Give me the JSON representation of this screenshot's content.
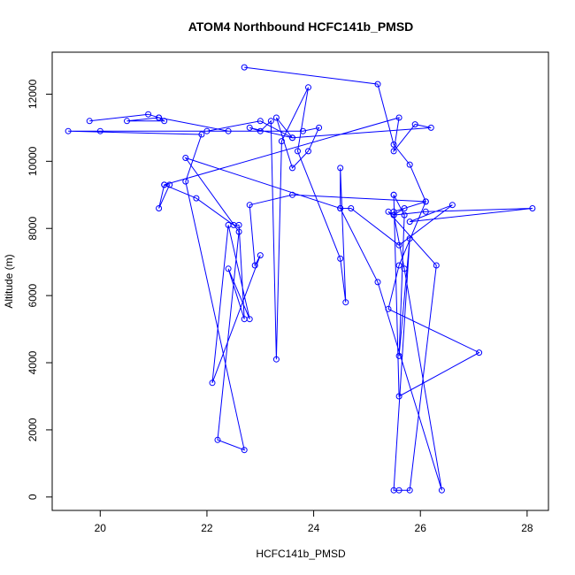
{
  "chart_data": {
    "type": "line",
    "title": "ATOM4 Northbound HCFC141b_PMSD",
    "xlabel": "HCFC141b_PMSD",
    "ylabel": "Altitude (m)",
    "xlim": [
      19.1,
      28.4
    ],
    "ylim": [
      -400,
      13250
    ],
    "x_ticks": [
      20,
      22,
      24,
      26,
      28
    ],
    "x_tick_labels": [
      "20",
      "22",
      "24",
      "26",
      "28"
    ],
    "y_ticks": [
      0,
      2000,
      4000,
      6000,
      8000,
      10000,
      12000
    ],
    "y_tick_labels": [
      "0",
      "2000",
      "4000",
      "6000",
      "8000",
      "10000",
      "12000"
    ],
    "grid": false,
    "legend": "none",
    "series_color": "#0000ff",
    "x": [
      22.7,
      25.2,
      25.5,
      25.8,
      26.1,
      25.6,
      25.4,
      27.1,
      25.6,
      25.5,
      25.5,
      25.7,
      25.6,
      25.8,
      25.5,
      25.6,
      25.8,
      26.3,
      25.4,
      25.5,
      25.7,
      26.4,
      25.2,
      24.5,
      24.5,
      24.6,
      24.5,
      23.7,
      23.9,
      23.4,
      23.3,
      23.2,
      23.0,
      22.8,
      23.6,
      23.3,
      23.6,
      23.9,
      24.1,
      23.8,
      22.0,
      23.0,
      23.6,
      26.2,
      25.9,
      25.5,
      25.6,
      21.2,
      21.1,
      21.3,
      21.2,
      21.8,
      22.5,
      22.6,
      22.7,
      22.4,
      22.8,
      22.4,
      22.1,
      23.0,
      22.9,
      22.8,
      23.6,
      26.1,
      25.5,
      25.7,
      25.5,
      26.1,
      28.1,
      25.8,
      26.6,
      25.6,
      24.7,
      24.5,
      21.6,
      22.6,
      22.2,
      22.7,
      21.6,
      21.9,
      19.4,
      20.0,
      22.4,
      21.1,
      21.2,
      20.5,
      21.1,
      20.9,
      19.8
    ],
    "y": [
      12800,
      12300,
      10500,
      9900,
      8800,
      6900,
      5600,
      4300,
      3000,
      9000,
      9000,
      8400,
      4200,
      7700,
      200,
      200,
      200,
      6900,
      8500,
      8400,
      6800,
      200,
      6400,
      8600,
      9800,
      5800,
      7100,
      10300,
      12200,
      10600,
      4100,
      11200,
      10900,
      11000,
      10700,
      11300,
      9800,
      10300,
      11000,
      10900,
      10900,
      11200,
      10700,
      11000,
      11100,
      10300,
      11300,
      9300,
      8600,
      9300,
      9300,
      8900,
      8100,
      8100,
      5300,
      6800,
      5300,
      8100,
      3400,
      7200,
      6900,
      8700,
      9000,
      8800,
      8500,
      8600,
      8400,
      8500,
      8600,
      8200,
      8700,
      7500,
      8600,
      8600,
      10100,
      7900,
      1700,
      1400,
      9400,
      10800,
      10900,
      10900,
      10900,
      11300,
      11200,
      11200,
      11300,
      11400,
      11200
    ]
  }
}
